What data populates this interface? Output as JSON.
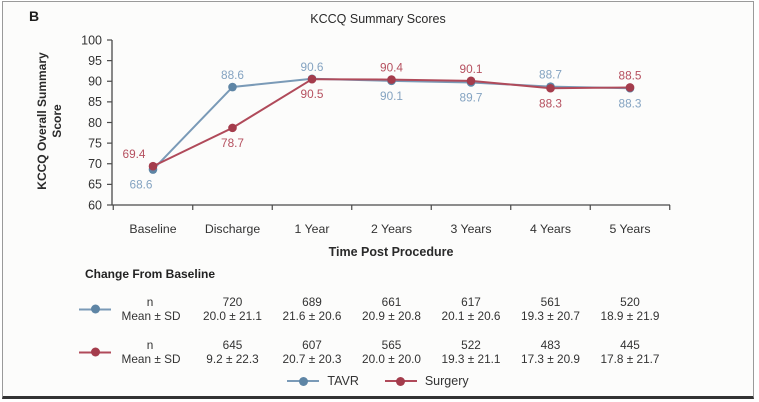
{
  "panel_label": "B",
  "colors": {
    "tavr": "#7a9ab7",
    "tavr_dot": "#5e85a5",
    "tavr_label": "#84a3c1",
    "surgery": "#b04a5a",
    "surgery_dot": "#a43c4c",
    "surgery_label": "#b5505f",
    "axis": "#4a4a4a",
    "text": "#333333"
  },
  "chart_data": {
    "type": "line",
    "title": "KCCQ Summary Scores",
    "xlabel": "Time Post Procedure",
    "ylabel": "KCCQ Overall Summary Score",
    "ylim": [
      60,
      100
    ],
    "ytick_step": 5,
    "grid": false,
    "legend_position": "bottom",
    "categories": [
      "Baseline",
      "Discharge",
      "1 Year",
      "2 Years",
      "3 Years",
      "4 Years",
      "5 Years"
    ],
    "series": [
      {
        "name": "TAVR",
        "values": [
          68.6,
          88.6,
          90.6,
          90.1,
          89.7,
          88.7,
          88.3
        ],
        "point_labels": [
          "68.6",
          "88.6",
          "90.6",
          "90.1",
          "89.7",
          "88.7",
          "88.3"
        ],
        "label_pos": [
          "below",
          "above",
          "above",
          "below",
          "below",
          "above",
          "below"
        ],
        "label_dx": [
          -12,
          0,
          0,
          0,
          0,
          0,
          0
        ]
      },
      {
        "name": "Surgery",
        "values": [
          69.4,
          78.7,
          90.5,
          90.4,
          90.1,
          88.3,
          88.5
        ],
        "point_labels": [
          "69.4",
          "78.7",
          "90.5",
          "90.4",
          "90.1",
          "88.3",
          "88.5"
        ],
        "label_pos": [
          "above",
          "below",
          "below",
          "above",
          "above",
          "below",
          "above"
        ],
        "label_dx": [
          -19,
          0,
          0,
          0,
          0,
          0,
          0
        ]
      }
    ]
  },
  "table": {
    "heading": "Change From Baseline",
    "row_labels": [
      "n",
      "Mean ± SD"
    ],
    "rows": [
      {
        "series": "TAVR",
        "n": [
          "720",
          "689",
          "661",
          "617",
          "561",
          "520"
        ],
        "mean_sd": [
          "20.0 ± 21.1",
          "21.6 ± 20.6",
          "20.9 ± 20.8",
          "20.1 ± 20.6",
          "19.3 ± 20.7",
          "18.9 ± 21.9"
        ]
      },
      {
        "series": "Surgery",
        "n": [
          "645",
          "607",
          "565",
          "522",
          "483",
          "445"
        ],
        "mean_sd": [
          "9.2 ± 22.3",
          "20.7 ± 20.3",
          "20.0 ± 20.0",
          "19.3 ± 21.1",
          "17.3 ± 20.9",
          "17.8 ± 21.7"
        ]
      }
    ]
  },
  "legend": {
    "items": [
      {
        "label": "TAVR"
      },
      {
        "label": "Surgery"
      }
    ]
  }
}
